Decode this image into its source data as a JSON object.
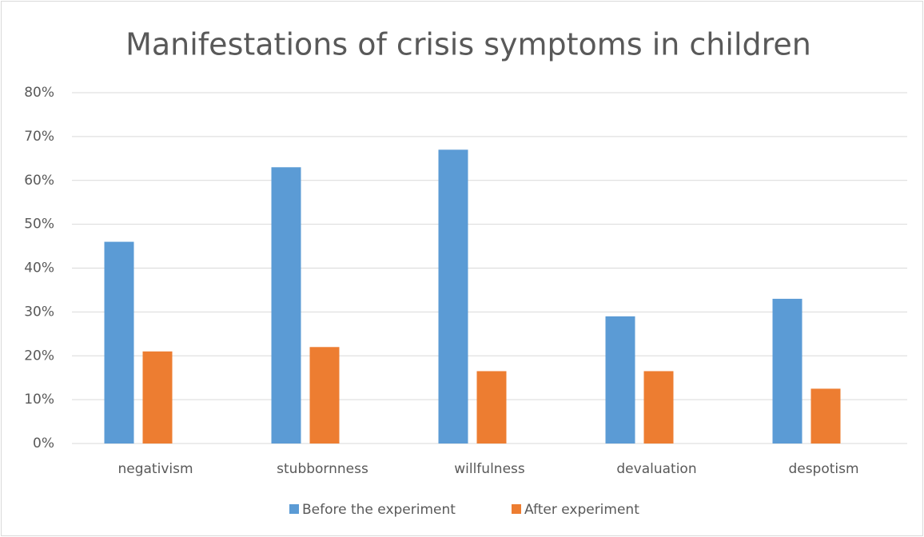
{
  "chart_data": {
    "type": "bar",
    "title": "Manifestations of crisis symptoms in children",
    "categories": [
      "negativism",
      "stubbornness",
      "willfulness",
      "devaluation",
      "despotism"
    ],
    "series": [
      {
        "name": "Before the experiment",
        "color": "#5b9bd5",
        "values": [
          46,
          63,
          67,
          29,
          33
        ]
      },
      {
        "name": "After experiment",
        "color": "#ed7d31",
        "values": [
          21,
          22,
          16.5,
          16.5,
          12.5
        ]
      }
    ],
    "ylim": [
      0,
      80
    ],
    "yticks": [
      {
        "value": 0,
        "label": "0%"
      },
      {
        "value": 10,
        "label": "10%"
      },
      {
        "value": 20,
        "label": "20%"
      },
      {
        "value": 30,
        "label": "30%"
      },
      {
        "value": 40,
        "label": "40%"
      },
      {
        "value": 50,
        "label": "50%"
      },
      {
        "value": 60,
        "label": "60%"
      },
      {
        "value": 70,
        "label": "70%"
      },
      {
        "value": 80,
        "label": "80%"
      }
    ],
    "grid": true,
    "legend": "bottom"
  }
}
